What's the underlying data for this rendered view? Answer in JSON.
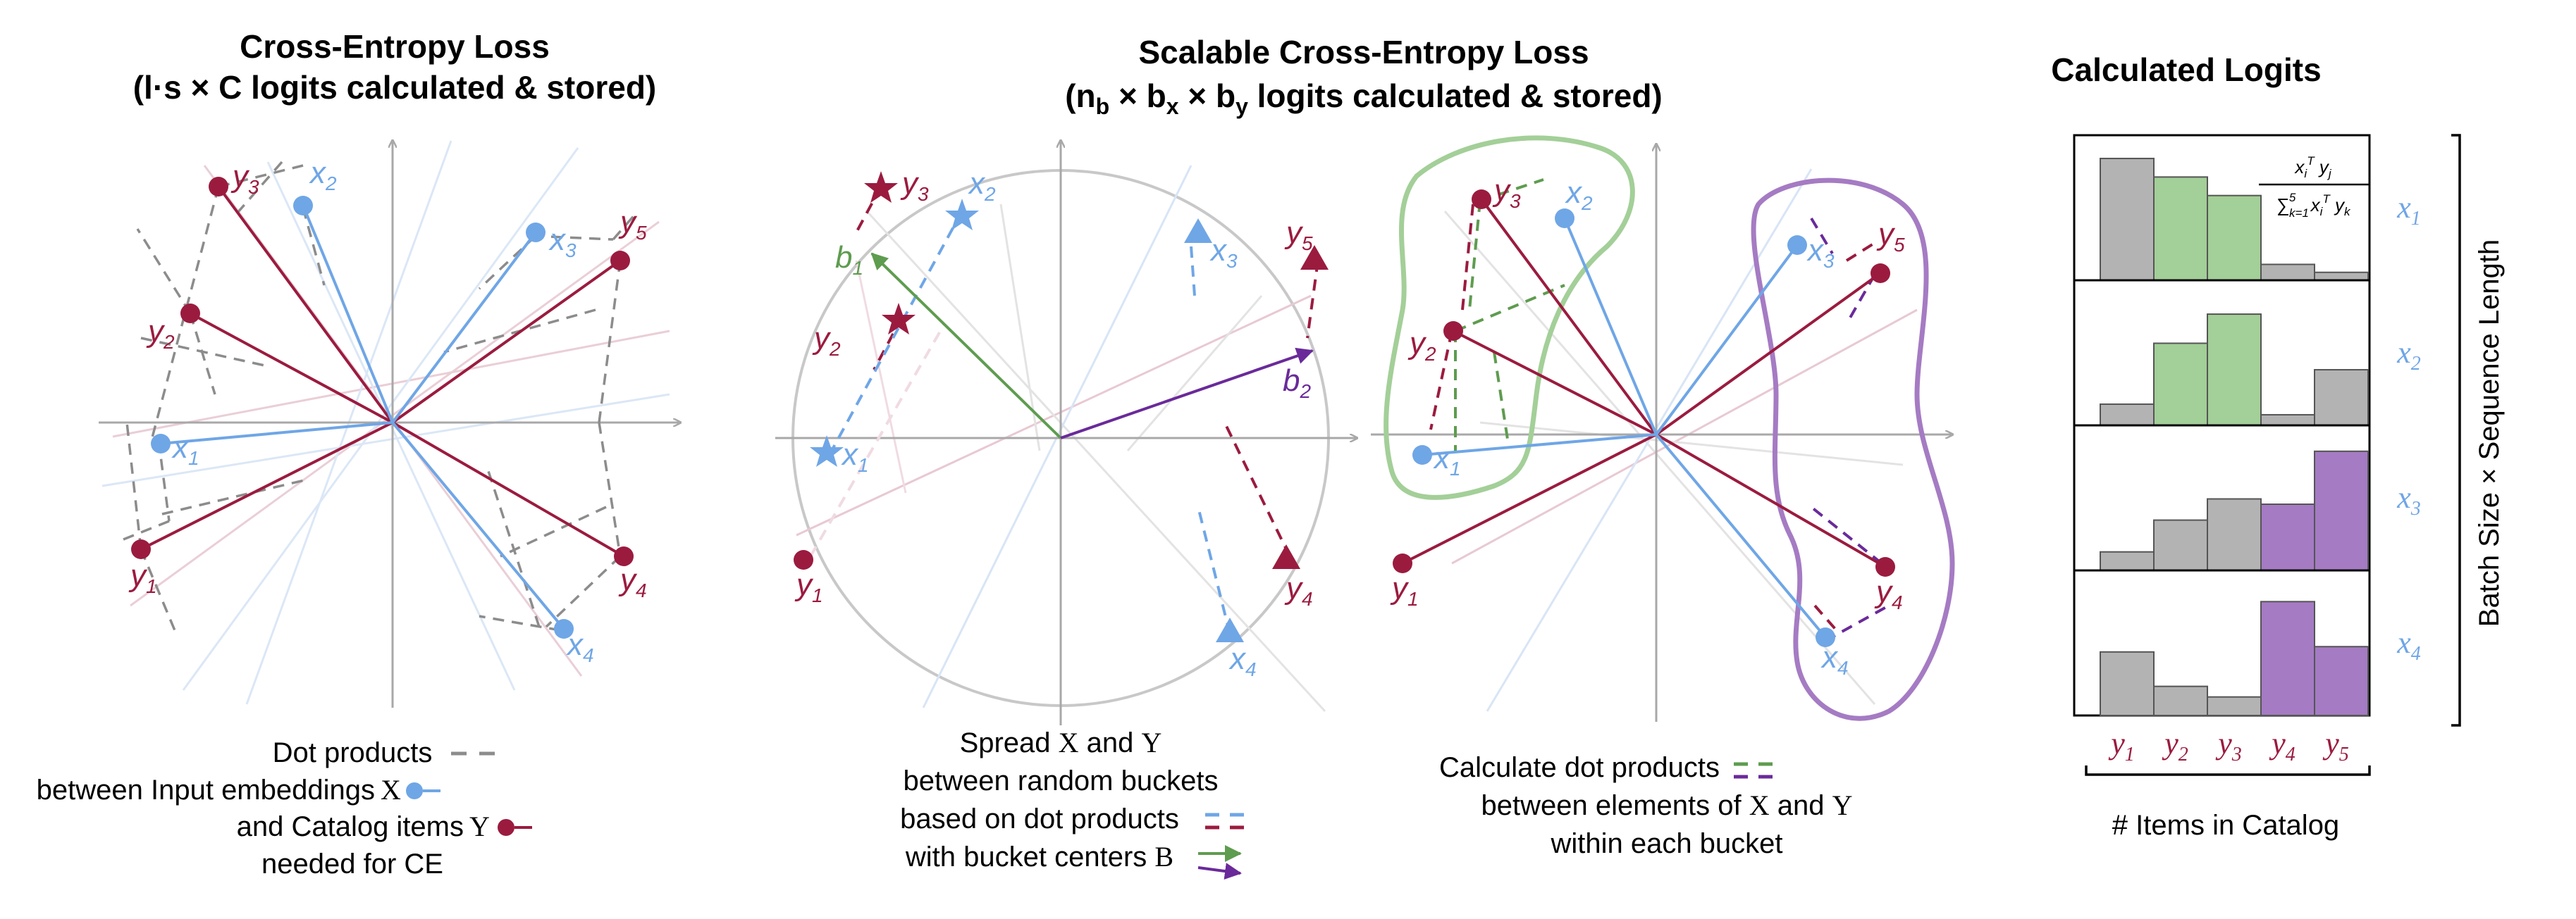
{
  "panel1": {
    "title_line1": "Cross-Entropy Loss",
    "title_line2": "(l·s × C logits calculated & stored)",
    "labels": {
      "x1": "x",
      "x2": "x",
      "x3": "x",
      "x4": "x",
      "y1": "y",
      "y2": "y",
      "y3": "y",
      "y4": "y",
      "y5": "y"
    },
    "caption": {
      "line1": "Dot products",
      "line2a": "between Input embeddings ",
      "line2b": "X",
      "line3a": "and Catalog items ",
      "line3b": "Y",
      "line4": "needed for CE"
    }
  },
  "panel2": {
    "title_a": "Scalable Cross-Entropy Loss",
    "title_b_open": "(n",
    "title_b_sub1": "b",
    "title_b_x": " × b",
    "title_b_sub2": "x",
    "title_b_y": " × b",
    "title_b_sub3": "y",
    "title_b_rest": " logits calculated & stored)",
    "caption": {
      "line1a": "Spread ",
      "line1b": "X",
      "line1c": " and ",
      "line1d": "Y",
      "line2": "between random buckets",
      "line3": "based on dot products",
      "line4a": "with bucket centers ",
      "line4b": "B"
    },
    "bucket_labels": {
      "b1": "b",
      "b2": "b"
    }
  },
  "panel3": {
    "caption": {
      "line1": "Calculate dot products",
      "line2a": "between elements of ",
      "line2b": "X",
      "line2c": " and ",
      "line2d": "Y",
      "line3": "within each bucket"
    }
  },
  "panel4": {
    "title": "Calculated Logits",
    "formula_num": "x",
    "formula_den": "∑",
    "row_labels": [
      "x",
      "x",
      "x",
      "x"
    ],
    "row_subs": [
      "1",
      "2",
      "3",
      "4"
    ],
    "col_labels": [
      "y",
      "y",
      "y",
      "y",
      "y"
    ],
    "col_subs": [
      "1",
      "2",
      "3",
      "4",
      "5"
    ],
    "ylabel": "Batch Size × Sequence Length",
    "xlabel": "# Items in Catalog",
    "rows": [
      {
        "values": [
          0.92,
          0.78,
          0.64,
          0.12,
          0.06
        ],
        "colors": [
          "gray",
          "green",
          "green",
          "gray",
          "gray"
        ]
      },
      {
        "values": [
          0.16,
          0.62,
          0.84,
          0.08,
          0.42
        ],
        "colors": [
          "gray",
          "green",
          "green",
          "gray",
          "gray"
        ]
      },
      {
        "values": [
          0.14,
          0.38,
          0.54,
          0.5,
          0.9
        ],
        "colors": [
          "gray",
          "gray",
          "gray",
          "purple",
          "purple"
        ]
      },
      {
        "values": [
          0.48,
          0.22,
          0.14,
          0.86,
          0.52
        ],
        "colors": [
          "gray",
          "gray",
          "gray",
          "purple",
          "purple"
        ]
      }
    ]
  },
  "colors": {
    "red": "#9b1b3f",
    "blue": "#6fa6e6",
    "green": "#5e9c4f",
    "purple": "#6a2a9a",
    "gray_bar": "#b3b3b3",
    "green_bar": "#a3cf98",
    "purple_bar": "#a57bc3",
    "axis": "#a8a8a8"
  }
}
